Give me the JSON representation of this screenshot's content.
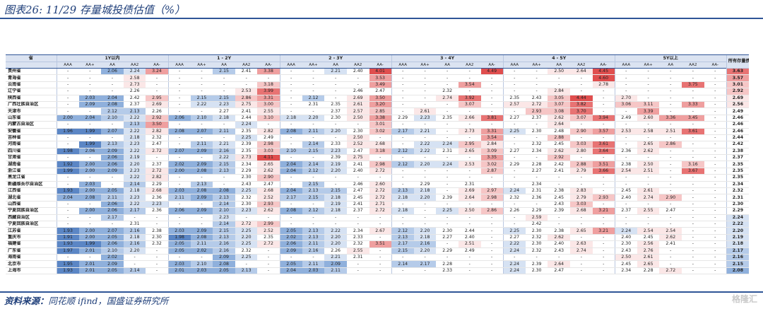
{
  "title": "图表26:  11/29 存量城投债估值（%）",
  "source_label": "资料来源：",
  "source_text": "同花顺 ifind，国盛证券研究所",
  "watermark": "格隆汇",
  "header": {
    "province_label": "省",
    "last_label": "所有存量债",
    "groups": [
      "1Y以内",
      "1 - 2Y",
      "2 - 3Y",
      "3 - 4Y",
      "4 - 5Y",
      "5Y以上"
    ],
    "subs": [
      "AAA",
      "AA+",
      "AA",
      "AA2",
      "AA-"
    ]
  },
  "rows": [
    {
      "p": "贵州省",
      "v": [
        "-",
        "-",
        "2.06",
        "2.24",
        "3.24",
        "-",
        "-",
        "2.15",
        "2.41",
        "3.38",
        "-",
        "-",
        "2.21",
        "2.40",
        "4.01",
        "-",
        "-",
        "-",
        "-",
        "4.49",
        "-",
        "-",
        "2.50",
        "2.64",
        "4.45",
        "-",
        "-",
        "-",
        "-",
        "-",
        "3.63"
      ]
    },
    {
      "p": "青海省",
      "v": [
        "-",
        "-",
        "-",
        "2.58",
        "-",
        "-",
        "-",
        "-",
        "-",
        "-",
        "-",
        "-",
        "-",
        "-",
        "3.53",
        "-",
        "-",
        "-",
        "-",
        "-",
        "-",
        "-",
        "-",
        "-",
        "4.60",
        "-",
        "-",
        "-",
        "-",
        "-",
        "3.57"
      ]
    },
    {
      "p": "云南省",
      "v": [
        "-",
        "-",
        "-",
        "2.73",
        "-",
        "-",
        "-",
        "-",
        "-",
        "3.18",
        "-",
        "-",
        "-",
        "-",
        "3.49",
        "-",
        "-",
        "-",
        "3.54",
        "-",
        "-",
        "-",
        "-",
        "-",
        "2.78",
        "-",
        "-",
        "-",
        "3.75",
        "-",
        "3.01"
      ]
    },
    {
      "p": "辽宁省",
      "v": [
        "-",
        "-",
        "-",
        "2.26",
        "-",
        "-",
        "-",
        "-",
        "2.53",
        "3.99",
        "-",
        "-",
        "-",
        "2.46",
        "2.47",
        "-",
        "-",
        "2.32",
        "-",
        "-",
        "-",
        "-",
        "2.84",
        "-",
        "-",
        "-",
        "-",
        "-",
        "-",
        "-",
        "2.92"
      ]
    },
    {
      "p": "陕西省",
      "v": [
        "-",
        "2.03",
        "2.04",
        "2.42",
        "2.95",
        "-",
        "2.15",
        "2.15",
        "2.86",
        "3.31",
        "-",
        "2.12",
        "-",
        "2.69",
        "3.50",
        "-",
        "-",
        "2.74",
        "3.92",
        "-",
        "2.35",
        "2.43",
        "3.05",
        "4.44",
        "-",
        "2.70",
        "-",
        "-",
        "-",
        "-",
        "2.69"
      ]
    },
    {
      "p": "广西壮族自治区",
      "v": [
        "-",
        "2.09",
        "2.08",
        "2.37",
        "2.69",
        "-",
        "2.22",
        "2.23",
        "2.75",
        "3.00",
        "-",
        "2.31",
        "2.35",
        "2.61",
        "3.20",
        "-",
        "-",
        "-",
        "3.07",
        "-",
        "2.57",
        "2.72",
        "3.07",
        "3.82",
        "-",
        "3.06",
        "3.11",
        "-",
        "3.33",
        "-",
        "2.56"
      ]
    },
    {
      "p": "天津市",
      "v": [
        "-",
        "-",
        "2.12",
        "2.13",
        "2.26",
        "-",
        "-",
        "2.27",
        "2.41",
        "2.55",
        "-",
        "-",
        "2.37",
        "2.57",
        "2.85",
        "-",
        "2.61",
        "-",
        "-",
        "-",
        "-",
        "2.93",
        "3.08",
        "3.70",
        "-",
        "-",
        "3.39",
        "-",
        "-",
        "-",
        "2.49"
      ]
    },
    {
      "p": "山东省",
      "v": [
        "2.00",
        "2.04",
        "2.10",
        "2.22",
        "2.92",
        "2.06",
        "2.10",
        "2.18",
        "2.44",
        "3.10",
        "2.18",
        "2.20",
        "2.30",
        "2.50",
        "3.38",
        "2.29",
        "2.23",
        "2.35",
        "2.66",
        "3.81",
        "2.27",
        "2.37",
        "2.62",
        "3.07",
        "3.94",
        "2.49",
        "2.60",
        "3.36",
        "3.45",
        "-",
        "2.46"
      ]
    },
    {
      "p": "内蒙古自治区",
      "v": [
        "-",
        "-",
        "-",
        "2.13",
        "3.50",
        "-",
        "-",
        "-",
        "2.24",
        "-",
        "-",
        "-",
        "-",
        "-",
        "3.01",
        "-",
        "-",
        "-",
        "-",
        "-",
        "-",
        "-",
        "2.64",
        "-",
        "-",
        "-",
        "-",
        "-",
        "-",
        "-",
        "2.46"
      ]
    },
    {
      "p": "安徽省",
      "v": [
        "1.96",
        "1.99",
        "2.07",
        "2.22",
        "2.82",
        "2.08",
        "2.07",
        "2.11",
        "2.35",
        "2.82",
        "2.08",
        "2.11",
        "2.20",
        "2.30",
        "3.02",
        "2.17",
        "2.21",
        "-",
        "2.73",
        "3.31",
        "2.25",
        "2.30",
        "2.48",
        "2.90",
        "3.57",
        "2.53",
        "2.58",
        "2.51",
        "3.61",
        "-",
        "2.46"
      ]
    },
    {
      "p": "吉林省",
      "v": [
        "-",
        "-",
        "-",
        "2.18",
        "2.32",
        "-",
        "-",
        "-",
        "2.25",
        "2.49",
        "-",
        "-",
        "-",
        "2.50",
        "-",
        "-",
        "-",
        "-",
        "-",
        "3.54",
        "-",
        "-",
        "2.88",
        "-",
        "-",
        "-",
        "-",
        "-",
        "-",
        "-",
        "2.44"
      ]
    },
    {
      "p": "河南省",
      "v": [
        "-",
        "1.99",
        "2.13",
        "2.23",
        "2.47",
        "-",
        "2.11",
        "2.21",
        "2.39",
        "2.98",
        "-",
        "2.14",
        "2.33",
        "2.52",
        "2.68",
        "-",
        "2.22",
        "2.24",
        "2.95",
        "2.84",
        "-",
        "2.32",
        "2.45",
        "3.03",
        "3.61",
        "-",
        "2.65",
        "2.86",
        "-",
        "-",
        "2.42"
      ]
    },
    {
      "p": "四川省",
      "v": [
        "1.98",
        "2.06",
        "2.09",
        "2.22",
        "2.72",
        "2.07",
        "2.09",
        "2.16",
        "2.35",
        "3.03",
        "2.10",
        "2.15",
        "2.23",
        "2.47",
        "3.18",
        "2.12",
        "2.22",
        "2.31",
        "2.65",
        "3.09",
        "2.27",
        "2.34",
        "2.62",
        "2.80",
        "3.64",
        "2.36",
        "2.62",
        "-",
        "-",
        "-",
        "2.38"
      ]
    },
    {
      "p": "甘肃省",
      "v": [
        "-",
        "-",
        "2.06",
        "2.19",
        "-",
        "-",
        "-",
        "2.22",
        "2.73",
        "4.11",
        "-",
        "-",
        "2.39",
        "2.75",
        "-",
        "-",
        "-",
        "-",
        "-",
        "3.35",
        "-",
        "-",
        "2.92",
        "-",
        "-",
        "-",
        "-",
        "-",
        "-",
        "-",
        "2.37"
      ]
    },
    {
      "p": "湖南省",
      "v": [
        "1.92",
        "2.00",
        "2.06",
        "2.20",
        "2.37",
        "2.02",
        "2.09",
        "2.15",
        "2.34",
        "2.65",
        "2.04",
        "2.14",
        "2.19",
        "2.41",
        "2.98",
        "2.12",
        "2.20",
        "2.24",
        "2.53",
        "3.02",
        "2.29",
        "2.28",
        "2.42",
        "2.88",
        "3.51",
        "2.38",
        "2.50",
        "-",
        "3.16",
        "-",
        "2.35"
      ]
    },
    {
      "p": "浙江省",
      "v": [
        "1.99",
        "2.00",
        "2.09",
        "2.23",
        "2.72",
        "2.00",
        "2.08",
        "2.13",
        "2.29",
        "2.62",
        "2.04",
        "2.12",
        "2.20",
        "2.40",
        "2.72",
        "-",
        "-",
        "-",
        "-",
        "2.87",
        "-",
        "2.27",
        "2.41",
        "2.79",
        "3.66",
        "2.54",
        "2.51",
        "-",
        "3.67",
        "-",
        "2.35"
      ]
    },
    {
      "p": "黑龙江省",
      "v": [
        "-",
        "-",
        "-",
        "2.22",
        "2.82",
        "-",
        "-",
        "-",
        "2.30",
        "2.90",
        "-",
        "-",
        "-",
        "-",
        "-",
        "-",
        "-",
        "-",
        "-",
        "-",
        "-",
        "-",
        "-",
        "-",
        "-",
        "-",
        "-",
        "-",
        "-",
        "-",
        "2.35"
      ]
    },
    {
      "p": "新疆维吾尔自治区",
      "v": [
        "-",
        "2.03",
        "-",
        "2.14",
        "2.29",
        "-",
        "2.13",
        "-",
        "2.43",
        "2.47",
        "-",
        "2.15",
        "-",
        "2.46",
        "2.60",
        "-",
        "2.29",
        "-",
        "2.31",
        "-",
        "-",
        "2.34",
        "-",
        "-",
        "-",
        "-",
        "-",
        "-",
        "-",
        "-",
        "2.34"
      ]
    },
    {
      "p": "江西省",
      "v": [
        "1.93",
        "2.00",
        "2.05",
        "2.18",
        "2.68",
        "2.03",
        "2.08",
        "2.08",
        "2.25",
        "2.68",
        "2.04",
        "2.13",
        "2.15",
        "2.47",
        "2.72",
        "2.13",
        "2.18",
        "-",
        "2.69",
        "2.97",
        "2.24",
        "2.31",
        "2.38",
        "2.83",
        "-",
        "2.45",
        "2.61",
        "-",
        "-",
        "-",
        "2.32"
      ]
    },
    {
      "p": "湖北省",
      "v": [
        "2.04",
        "2.08",
        "2.11",
        "2.23",
        "2.36",
        "2.11",
        "2.09",
        "2.13",
        "2.32",
        "2.52",
        "2.17",
        "2.15",
        "2.18",
        "2.45",
        "2.72",
        "2.18",
        "2.20",
        "2.39",
        "2.64",
        "2.98",
        "2.32",
        "2.36",
        "2.45",
        "2.79",
        "2.93",
        "2.40",
        "2.74",
        "2.90",
        "-",
        "-",
        "2.31"
      ]
    },
    {
      "p": "山西省",
      "v": [
        "-",
        "-",
        "2.06",
        "2.22",
        "2.23",
        "-",
        "-",
        "2.14",
        "2.30",
        "2.93",
        "-",
        "-",
        "2.19",
        "2.41",
        "2.71",
        "-",
        "-",
        "-",
        "-",
        "-",
        "-",
        "-",
        "2.43",
        "3.03",
        "-",
        "-",
        "-",
        "-",
        "-",
        "-",
        "2.30"
      ]
    },
    {
      "p": "宁夏回族自治区",
      "v": [
        "-",
        "2.00",
        "2.06",
        "2.17",
        "2.36",
        "2.06",
        "2.09",
        "2.10",
        "2.23",
        "2.62",
        "2.08",
        "2.12",
        "2.18",
        "2.37",
        "2.72",
        "2.18",
        "-",
        "2.25",
        "2.50",
        "2.86",
        "2.26",
        "2.29",
        "2.39",
        "2.68",
        "3.21",
        "2.37",
        "2.55",
        "2.47",
        "-",
        "-",
        "2.29"
      ]
    },
    {
      "p": "西藏自治区",
      "v": [
        "-",
        "-",
        "2.17",
        "-",
        "-",
        "-",
        "-",
        "2.23",
        "-",
        "-",
        "-",
        "-",
        "-",
        "-",
        "-",
        "-",
        "-",
        "-",
        "-",
        "-",
        "-",
        "2.59",
        "-",
        "-",
        "-",
        "-",
        "-",
        "-",
        "-",
        "-",
        "2.24"
      ]
    },
    {
      "p": "宁夏回族自治区",
      "v": [
        "-",
        "-",
        "-",
        "2.31",
        "-",
        "-",
        "-",
        "2.14",
        "2.72",
        "2.99",
        "-",
        "-",
        "-",
        "-",
        "-",
        "-",
        "-",
        "-",
        "-",
        "-",
        "-",
        "2.42",
        "-",
        "-",
        "-",
        "-",
        "-",
        "-",
        "-",
        "-",
        "2.22"
      ]
    },
    {
      "p": "江苏省",
      "v": [
        "1.93",
        "2.00",
        "2.07",
        "2.16",
        "2.38",
        "2.03",
        "2.09",
        "2.15",
        "2.25",
        "2.52",
        "2.05",
        "2.13",
        "2.22",
        "2.34",
        "2.67",
        "2.12",
        "2.20",
        "2.30",
        "2.44",
        "-",
        "2.25",
        "2.30",
        "2.38",
        "2.65",
        "3.21",
        "2.24",
        "2.54",
        "2.54",
        "-",
        "-",
        "2.20"
      ]
    },
    {
      "p": "重庆市",
      "v": [
        "1.91",
        "2.00",
        "2.05",
        "2.18",
        "2.30",
        "1.98",
        "2.08",
        "2.13",
        "2.20",
        "2.35",
        "2.02",
        "2.13",
        "2.20",
        "2.33",
        "-",
        "2.13",
        "2.18",
        "2.27",
        "2.40",
        "-",
        "2.27",
        "2.32",
        "2.62",
        "-",
        "-",
        "2.40",
        "2.45",
        "2.62",
        "-",
        "-",
        "2.19"
      ]
    },
    {
      "p": "福建省",
      "v": [
        "1.93",
        "1.99",
        "2.06",
        "2.16",
        "2.32",
        "2.05",
        "2.11",
        "2.16",
        "2.25",
        "2.72",
        "2.06",
        "2.11",
        "2.20",
        "2.32",
        "3.51",
        "2.17",
        "2.16",
        "-",
        "2.51",
        "-",
        "2.22",
        "2.30",
        "2.40",
        "2.63",
        "-",
        "2.30",
        "2.56",
        "2.41",
        "-",
        "-",
        "2.18"
      ]
    },
    {
      "p": "广东省",
      "v": [
        "1.97",
        "2.01",
        "2.10",
        "2.20",
        "-",
        "2.05",
        "2.02",
        "2.16",
        "2.32",
        "-",
        "2.09",
        "2.16",
        "2.26",
        "2.55",
        "-",
        "2.15",
        "2.20",
        "2.29",
        "2.49",
        "-",
        "2.24",
        "2.32",
        "2.43",
        "2.74",
        "-",
        "2.43",
        "2.76",
        "-",
        "-",
        "-",
        "2.17"
      ]
    },
    {
      "p": "海南省",
      "v": [
        "-",
        "-",
        "2.02",
        "-",
        "-",
        "-",
        "-",
        "2.09",
        "2.25",
        "-",
        "-",
        "-",
        "2.21",
        "2.31",
        "-",
        "-",
        "-",
        "-",
        "-",
        "-",
        "-",
        "-",
        "-",
        "-",
        "-",
        "2.50",
        "2.61",
        "-",
        "-",
        "-",
        "2.16"
      ]
    },
    {
      "p": "北京市",
      "v": [
        "1.95",
        "2.01",
        "2.09",
        "-",
        "-",
        "2.03",
        "2.10",
        "2.08",
        "-",
        "-",
        "2.05",
        "2.11",
        "2.09",
        "-",
        "-",
        "2.14",
        "2.17",
        "2.28",
        "-",
        "-",
        "2.24",
        "2.39",
        "2.64",
        "-",
        "-",
        "2.45",
        "2.65",
        "-",
        "-",
        "-",
        "2.15"
      ]
    },
    {
      "p": "上海市",
      "v": [
        "1.93",
        "2.01",
        "2.05",
        "2.14",
        "-",
        "2.01",
        "2.03",
        "2.05",
        "2.13",
        "-",
        "2.04",
        "2.03",
        "2.11",
        "-",
        "-",
        "-",
        "-",
        "2.33",
        "-",
        "-",
        "2.24",
        "2.30",
        "2.47",
        "-",
        "-",
        "2.34",
        "2.28",
        "2.72",
        "-",
        "-",
        "2.08"
      ]
    }
  ]
}
